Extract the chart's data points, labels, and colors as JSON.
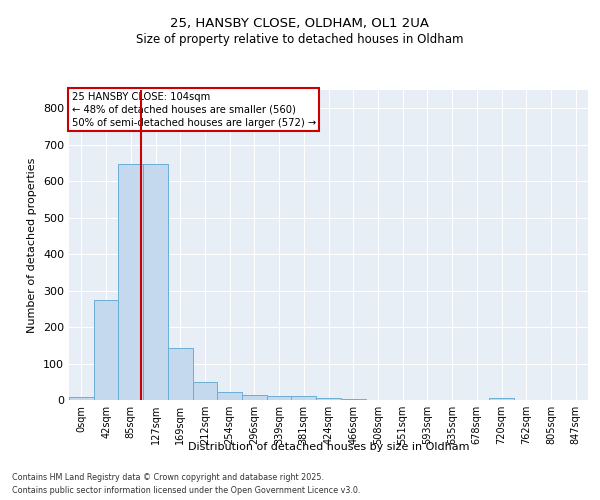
{
  "title1": "25, HANSBY CLOSE, OLDHAM, OL1 2UA",
  "title2": "Size of property relative to detached houses in Oldham",
  "xlabel": "Distribution of detached houses by size in Oldham",
  "ylabel": "Number of detached properties",
  "footnote1": "Contains HM Land Registry data © Crown copyright and database right 2025.",
  "footnote2": "Contains public sector information licensed under the Open Government Licence v3.0.",
  "annotation_line1": "25 HANSBY CLOSE: 104sqm",
  "annotation_line2": "← 48% of detached houses are smaller (560)",
  "annotation_line3": "50% of semi-detached houses are larger (572) →",
  "bar_color": "#c5d9ee",
  "bar_edge_color": "#6baed6",
  "vline_color": "#cc0000",
  "background_color": "#e8eef6",
  "grid_color": "#ffffff",
  "categories": [
    "0sqm",
    "42sqm",
    "85sqm",
    "127sqm",
    "169sqm",
    "212sqm",
    "254sqm",
    "296sqm",
    "339sqm",
    "381sqm",
    "424sqm",
    "466sqm",
    "508sqm",
    "551sqm",
    "593sqm",
    "635sqm",
    "678sqm",
    "720sqm",
    "762sqm",
    "805sqm",
    "847sqm"
  ],
  "values": [
    8,
    273,
    648,
    648,
    143,
    48,
    22,
    13,
    12,
    12,
    5,
    2,
    1,
    1,
    0,
    0,
    0,
    5,
    0,
    0,
    0
  ],
  "vline_x": 2.43,
  "ylim": [
    0,
    850
  ],
  "yticks": [
    0,
    100,
    200,
    300,
    400,
    500,
    600,
    700,
    800
  ]
}
